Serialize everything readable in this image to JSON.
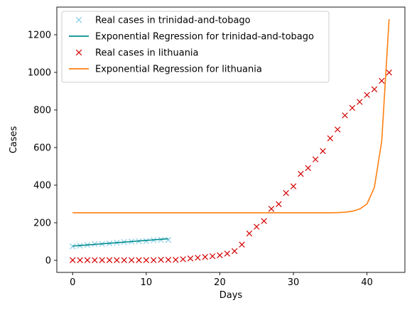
{
  "chart_data": {
    "type": "line",
    "xlabel": "Days",
    "ylabel": "Cases",
    "xlim": [
      -2.15,
      45.15
    ],
    "ylim": [
      -64.1,
      1347.1
    ],
    "xticks": [
      0,
      10,
      20,
      30,
      40
    ],
    "yticks": [
      0,
      200,
      400,
      600,
      800,
      1000,
      1200
    ],
    "grid": false,
    "legend_position": "top-left",
    "series": [
      {
        "name": "Real cases in trinidad-and-tobago",
        "kind": "scatter",
        "marker": "x",
        "color": "#87ceeb",
        "x": [
          0,
          1,
          2,
          3,
          4,
          5,
          6,
          7,
          8,
          9,
          10,
          11,
          12,
          13
        ],
        "y": [
          74,
          78,
          82,
          87,
          87,
          90,
          94,
          98,
          100,
          102,
          103,
          107,
          109,
          109
        ]
      },
      {
        "name": "Exponential Regression for trinidad-and-tobago",
        "kind": "line",
        "color": "#008b8b",
        "x": [
          0,
          1,
          2,
          3,
          4,
          5,
          6,
          7,
          8,
          9,
          10,
          11,
          12,
          13
        ],
        "y": [
          76,
          79,
          82,
          85,
          88,
          91,
          94,
          97,
          100,
          103,
          106,
          109,
          112,
          115
        ]
      },
      {
        "name": "Real cases in lithuania",
        "kind": "scatter",
        "marker": "x",
        "color": "#d40000",
        "x": [
          0,
          1,
          2,
          3,
          4,
          5,
          6,
          7,
          8,
          9,
          10,
          11,
          12,
          13,
          14,
          15,
          16,
          17,
          18,
          19,
          20,
          21,
          22,
          23,
          24,
          25,
          26,
          27,
          28,
          29,
          30,
          31,
          32,
          33,
          34,
          35,
          36,
          37,
          38,
          39,
          40,
          41,
          42,
          43
        ],
        "y": [
          1,
          1,
          1,
          1,
          1,
          1,
          1,
          1,
          1,
          1,
          1,
          1,
          3,
          3,
          3,
          6,
          10,
          14,
          18,
          22,
          27,
          36,
          49,
          84,
          143,
          179,
          209,
          274,
          299,
          358,
          394,
          460,
          491,
          537,
          581,
          649,
          696,
          771,
          811,
          843,
          880,
          910,
          955,
          999
        ]
      },
      {
        "name": "Exponential Regression for lithuania",
        "kind": "line",
        "color": "#ff7f0e",
        "x": [
          0,
          1,
          2,
          3,
          4,
          5,
          6,
          7,
          8,
          9,
          10,
          11,
          12,
          13,
          14,
          15,
          16,
          17,
          18,
          19,
          20,
          21,
          22,
          23,
          24,
          25,
          26,
          27,
          28,
          29,
          30,
          31,
          32,
          33,
          34,
          35,
          36,
          37,
          38,
          39,
          40,
          41,
          42,
          43
        ],
        "y": [
          253,
          253,
          253,
          253,
          253,
          253,
          253,
          253,
          253,
          253,
          253,
          253,
          253,
          253,
          253,
          253,
          253,
          253,
          253,
          253,
          253,
          253,
          253,
          253,
          253,
          253,
          253,
          253,
          253,
          253,
          253,
          253,
          253,
          253,
          253,
          253,
          254,
          256,
          261,
          273,
          300,
          388,
          634,
          1283
        ]
      }
    ]
  }
}
